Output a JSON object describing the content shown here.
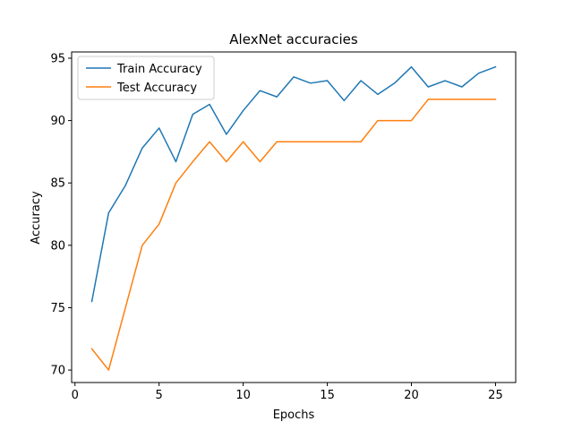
{
  "chart_data": {
    "type": "line",
    "title": "AlexNet accuracies",
    "xlabel": "Epochs",
    "ylabel": "Accuracy",
    "x": [
      1,
      2,
      3,
      4,
      5,
      6,
      7,
      8,
      9,
      10,
      11,
      12,
      13,
      14,
      15,
      16,
      17,
      18,
      19,
      20,
      21,
      22,
      23,
      24,
      25
    ],
    "series": [
      {
        "name": "Train Accuracy",
        "color": "#1f77b4",
        "values": [
          75.5,
          82.6,
          84.8,
          87.8,
          89.4,
          86.7,
          90.5,
          91.3,
          88.9,
          90.8,
          92.4,
          91.9,
          93.5,
          93.0,
          93.2,
          91.6,
          93.2,
          92.1,
          93.0,
          94.3,
          92.7,
          93.2,
          92.7,
          93.8,
          94.3
        ]
      },
      {
        "name": "Test Accuracy",
        "color": "#ff7f0e",
        "values": [
          71.7,
          70.0,
          75.0,
          80.0,
          81.7,
          85.0,
          86.7,
          88.3,
          86.7,
          88.3,
          86.7,
          88.3,
          88.3,
          88.3,
          88.3,
          88.3,
          88.3,
          90.0,
          90.0,
          90.0,
          91.7,
          91.7,
          91.7,
          91.7,
          91.7
        ]
      }
    ],
    "xlim": [
      -0.2,
      26.2
    ],
    "ylim": [
      69.0,
      95.5
    ],
    "xticks": [
      0,
      5,
      10,
      15,
      20,
      25
    ],
    "yticks": [
      70,
      75,
      80,
      85,
      90,
      95
    ],
    "grid": false,
    "legend_position": "upper left"
  }
}
